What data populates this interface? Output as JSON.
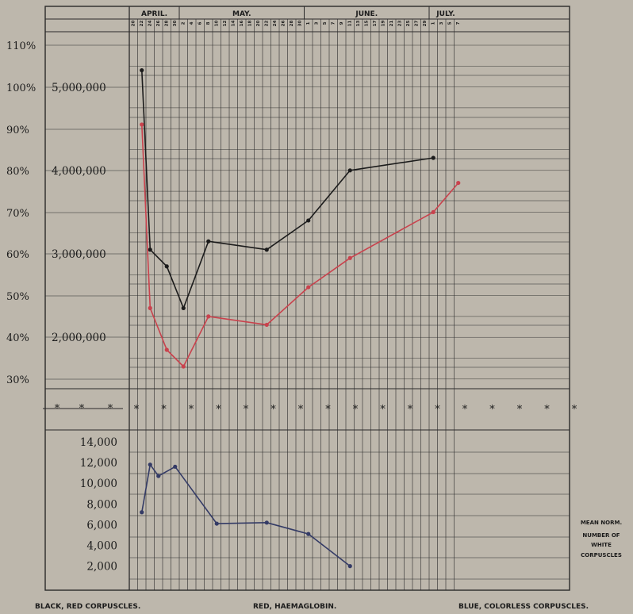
{
  "chart_data": {
    "type": "line",
    "months": [
      "APRIL.",
      "MAY.",
      "JUNE.",
      "JULY."
    ],
    "day_labels": {
      "april": [
        "20",
        "22",
        "24",
        "26",
        "28",
        "30"
      ],
      "may": [
        "2",
        "4",
        "6",
        "8",
        "10",
        "12",
        "14",
        "16",
        "18",
        "20",
        "22",
        "24",
        "26",
        "28",
        "30"
      ],
      "june": [
        "1",
        "3",
        "5",
        "7",
        "9",
        "11",
        "13",
        "15",
        "17",
        "19",
        "21",
        "23",
        "25",
        "27",
        "29"
      ],
      "july": [
        "1",
        "3",
        "5",
        "7"
      ]
    },
    "upper_axis": {
      "percent_ticks": [
        "110%",
        "100%",
        "90%",
        "80%",
        "70%",
        "60%",
        "50%",
        "40%",
        "30%"
      ],
      "red_corpuscle_ticks": [
        "5,000,000",
        "4,000,000",
        "3,000,000",
        "2,000,000"
      ]
    },
    "lower_axis": {
      "ticks": [
        "14,000",
        "12,000",
        "10,000",
        "8,000",
        "6,000",
        "4,000",
        "2,000"
      ]
    },
    "divider_symbol": "*",
    "series": [
      {
        "name": "BLACK, RED CORPUSCLES.",
        "color": "#1c1c1c",
        "axis": "upper",
        "unit": "percent",
        "points": [
          {
            "date": "Apr 22",
            "value": 104
          },
          {
            "date": "Apr 24",
            "value": 61
          },
          {
            "date": "Apr 28",
            "value": 57
          },
          {
            "date": "May 2",
            "value": 47
          },
          {
            "date": "May 8",
            "value": 63
          },
          {
            "date": "May 22",
            "value": 61
          },
          {
            "date": "Jun 1",
            "value": 68
          },
          {
            "date": "Jun 11",
            "value": 80
          },
          {
            "date": "Jul 1",
            "value": 83
          }
        ]
      },
      {
        "name": "RED, HAEMAGLOBIN.",
        "color": "#c9424d",
        "axis": "upper",
        "unit": "percent",
        "points": [
          {
            "date": "Apr 22",
            "value": 91
          },
          {
            "date": "Apr 24",
            "value": 47
          },
          {
            "date": "Apr 28",
            "value": 37
          },
          {
            "date": "May 2",
            "value": 33
          },
          {
            "date": "May 8",
            "value": 45
          },
          {
            "date": "May 22",
            "value": 43
          },
          {
            "date": "Jun 1",
            "value": 52
          },
          {
            "date": "Jun 11",
            "value": 59
          },
          {
            "date": "Jul 1",
            "value": 70
          },
          {
            "date": "Jul 7",
            "value": 77
          }
        ]
      },
      {
        "name": "BLUE, COLORLESS CORPUSCLES.",
        "color": "#343b66",
        "axis": "lower",
        "unit": "count",
        "points": [
          {
            "date": "Apr 22",
            "value": 7200
          },
          {
            "date": "Apr 24",
            "value": 11800
          },
          {
            "date": "Apr 26",
            "value": 10700
          },
          {
            "date": "Apr 30",
            "value": 11600
          },
          {
            "date": "May 10",
            "value": 6100
          },
          {
            "date": "May 22",
            "value": 6200
          },
          {
            "date": "Jun 1",
            "value": 5100
          },
          {
            "date": "Jun 11",
            "value": 2000
          }
        ]
      }
    ],
    "note": [
      "MEAN NORM.",
      "NUMBER OF",
      "WHITE",
      "CORPUSCLES"
    ],
    "legend": {
      "left": "BLACK, RED CORPUSCLES.",
      "center": "RED, HAEMAGLOBIN.",
      "right": "BLUE, COLORLESS CORPUSCLES."
    }
  }
}
